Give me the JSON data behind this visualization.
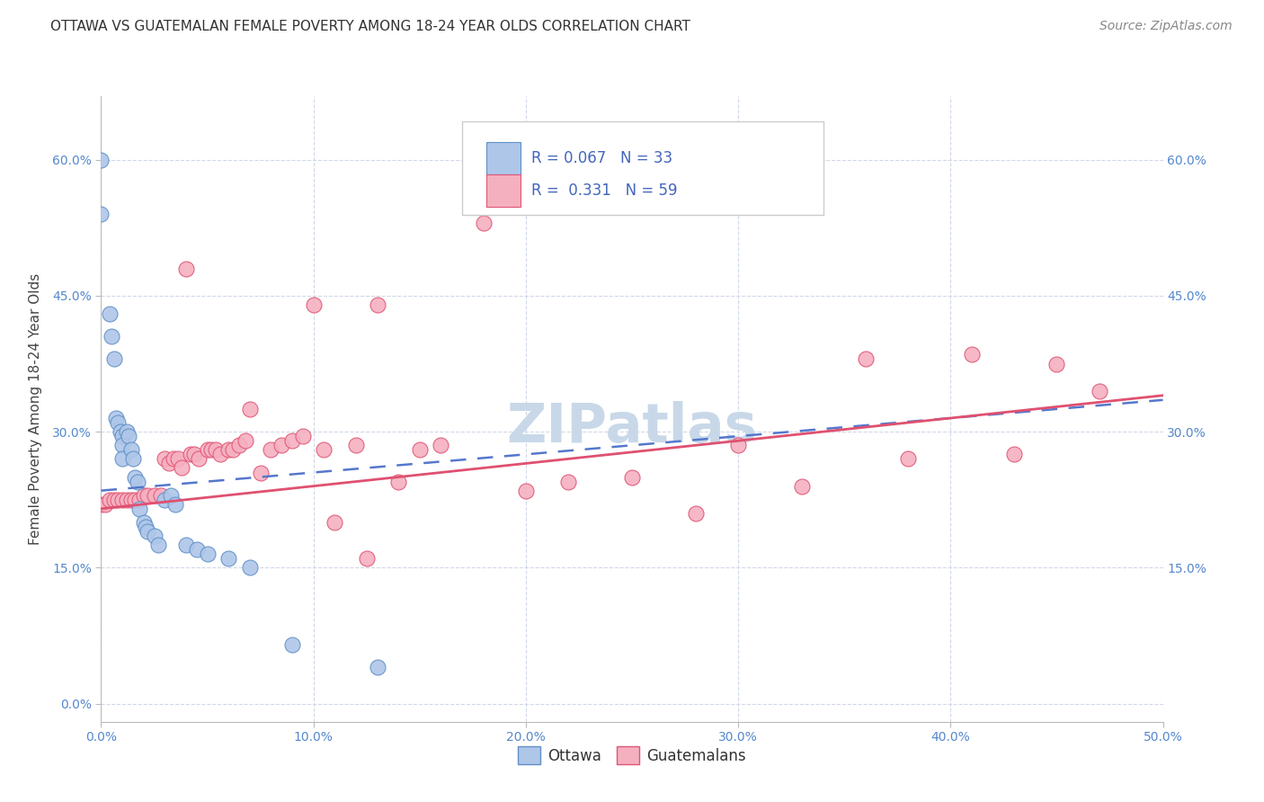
{
  "title": "OTTAWA VS GUATEMALAN FEMALE POVERTY AMONG 18-24 YEAR OLDS CORRELATION CHART",
  "source": "Source: ZipAtlas.com",
  "ylabel": "Female Poverty Among 18-24 Year Olds",
  "xlim": [
    0.0,
    0.5
  ],
  "ylim": [
    -0.02,
    0.67
  ],
  "xticks": [
    0.0,
    0.1,
    0.2,
    0.3,
    0.4,
    0.5
  ],
  "yticks": [
    0.0,
    0.15,
    0.3,
    0.45,
    0.6
  ],
  "xticklabels": [
    "0.0%",
    "10.0%",
    "20.0%",
    "30.0%",
    "40.0%",
    "50.0%"
  ],
  "yticklabels": [
    "0.0%",
    "15.0%",
    "30.0%",
    "45.0%",
    "60.0%"
  ],
  "right_yticklabels": [
    "15.0%",
    "30.0%",
    "45.0%",
    "60.0%"
  ],
  "right_yticks": [
    0.15,
    0.3,
    0.45,
    0.6
  ],
  "background_color": "#ffffff",
  "grid_color": "#d0d8e8",
  "ottawa_color": "#aec6e8",
  "guatemalan_color": "#f5b0c0",
  "ottawa_edge_color": "#6090c8",
  "guatemalan_edge_color": "#e05575",
  "ottawa_line_color": "#5577cc",
  "guatemalan_line_color": "#e05070",
  "R_ottawa": 0.067,
  "N_ottawa": 33,
  "R_guatemalan": 0.331,
  "N_guatemalan": 59,
  "legend_color": "#4466bb",
  "watermark_text": "ZIPatlas",
  "watermark_color": "#c8d8e8",
  "title_fontsize": 11,
  "axis_label_fontsize": 11,
  "tick_fontsize": 10,
  "legend_fontsize": 12,
  "source_fontsize": 10,
  "ottawa_points_x": [
    0.0,
    0.0,
    0.004,
    0.005,
    0.006,
    0.007,
    0.008,
    0.009,
    0.01,
    0.01,
    0.01,
    0.012,
    0.013,
    0.014,
    0.015,
    0.016,
    0.017,
    0.018,
    0.02,
    0.021,
    0.022,
    0.025,
    0.027,
    0.03,
    0.033,
    0.035,
    0.04,
    0.045,
    0.05,
    0.06,
    0.07,
    0.09,
    0.13
  ],
  "ottawa_points_y": [
    0.6,
    0.54,
    0.43,
    0.405,
    0.38,
    0.315,
    0.31,
    0.3,
    0.295,
    0.285,
    0.27,
    0.3,
    0.295,
    0.28,
    0.27,
    0.25,
    0.245,
    0.215,
    0.2,
    0.195,
    0.19,
    0.185,
    0.175,
    0.225,
    0.23,
    0.22,
    0.175,
    0.17,
    0.165,
    0.16,
    0.15,
    0.065,
    0.04
  ],
  "guatemalan_points_x": [
    0.0,
    0.002,
    0.004,
    0.006,
    0.008,
    0.01,
    0.012,
    0.014,
    0.016,
    0.018,
    0.02,
    0.022,
    0.025,
    0.028,
    0.03,
    0.032,
    0.034,
    0.036,
    0.038,
    0.04,
    0.042,
    0.044,
    0.046,
    0.05,
    0.052,
    0.054,
    0.056,
    0.06,
    0.062,
    0.065,
    0.068,
    0.07,
    0.075,
    0.08,
    0.085,
    0.09,
    0.095,
    0.1,
    0.105,
    0.11,
    0.12,
    0.125,
    0.13,
    0.14,
    0.15,
    0.16,
    0.18,
    0.2,
    0.22,
    0.25,
    0.28,
    0.3,
    0.33,
    0.36,
    0.38,
    0.41,
    0.43,
    0.45,
    0.47
  ],
  "guatemalan_points_y": [
    0.22,
    0.22,
    0.225,
    0.225,
    0.225,
    0.225,
    0.225,
    0.225,
    0.225,
    0.225,
    0.23,
    0.23,
    0.23,
    0.23,
    0.27,
    0.265,
    0.27,
    0.27,
    0.26,
    0.48,
    0.275,
    0.275,
    0.27,
    0.28,
    0.28,
    0.28,
    0.275,
    0.28,
    0.28,
    0.285,
    0.29,
    0.325,
    0.255,
    0.28,
    0.285,
    0.29,
    0.295,
    0.44,
    0.28,
    0.2,
    0.285,
    0.16,
    0.44,
    0.245,
    0.28,
    0.285,
    0.53,
    0.235,
    0.245,
    0.25,
    0.21,
    0.285,
    0.24,
    0.38,
    0.27,
    0.385,
    0.275,
    0.375,
    0.345
  ]
}
